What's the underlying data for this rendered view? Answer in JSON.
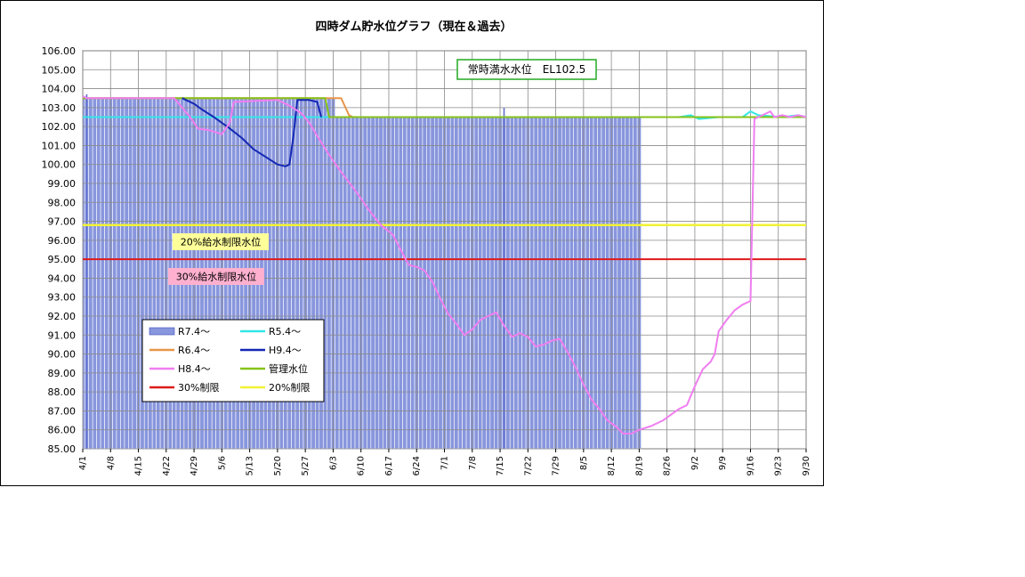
{
  "chart_data": {
    "type": "line",
    "title": "四時ダム貯水位グラフ（現在＆過去）",
    "xlabel": "",
    "ylabel": "",
    "ylim": [
      85,
      106
    ],
    "yticks": [
      "85.00",
      "86.00",
      "87.00",
      "88.00",
      "89.00",
      "90.00",
      "91.00",
      "92.00",
      "93.00",
      "94.00",
      "95.00",
      "96.00",
      "97.00",
      "98.00",
      "99.00",
      "100.00",
      "101.00",
      "102.00",
      "103.00",
      "104.00",
      "105.00",
      "106.00"
    ],
    "xlim": [
      0,
      182
    ],
    "xticks": [
      {
        "day": 0,
        "label": "4/1"
      },
      {
        "day": 7,
        "label": "4/8"
      },
      {
        "day": 14,
        "label": "4/15"
      },
      {
        "day": 21,
        "label": "4/22"
      },
      {
        "day": 28,
        "label": "4/29"
      },
      {
        "day": 35,
        "label": "5/6"
      },
      {
        "day": 42,
        "label": "5/13"
      },
      {
        "day": 49,
        "label": "5/20"
      },
      {
        "day": 56,
        "label": "5/27"
      },
      {
        "day": 63,
        "label": "6/3"
      },
      {
        "day": 70,
        "label": "6/10"
      },
      {
        "day": 77,
        "label": "6/17"
      },
      {
        "day": 84,
        "label": "6/24"
      },
      {
        "day": 91,
        "label": "7/1"
      },
      {
        "day": 98,
        "label": "7/8"
      },
      {
        "day": 105,
        "label": "7/15"
      },
      {
        "day": 112,
        "label": "7/22"
      },
      {
        "day": 119,
        "label": "7/29"
      },
      {
        "day": 126,
        "label": "8/5"
      },
      {
        "day": 133,
        "label": "8/12"
      },
      {
        "day": 140,
        "label": "8/19"
      },
      {
        "day": 147,
        "label": "8/26"
      },
      {
        "day": 154,
        "label": "9/2"
      },
      {
        "day": 161,
        "label": "9/9"
      },
      {
        "day": 168,
        "label": "9/16"
      },
      {
        "day": 175,
        "label": "9/23"
      },
      {
        "day": 182,
        "label": "9/30"
      }
    ],
    "grid": true,
    "legend_position": "lower-left",
    "annotations": [
      {
        "text": "常時満水水位　EL102.5",
        "style": "green-box"
      },
      {
        "text": "20%給水制限水位",
        "style": "yellow-box"
      },
      {
        "text": "30%給水制限水位",
        "style": "pink-box"
      }
    ],
    "series": [
      {
        "name": "R7.4～",
        "kind": "bar",
        "color": "#8896dd",
        "segments": [
          {
            "from": 0,
            "to": 63,
            "value": 103.5
          },
          {
            "from": 64,
            "to": 140,
            "value": 102.5
          }
        ],
        "spikes": [
          {
            "day": 1,
            "value": 103.7
          },
          {
            "day": 106,
            "value": 103.0
          }
        ]
      },
      {
        "name": "R5.4～",
        "kind": "line",
        "color": "#33e6e6",
        "points": [
          [
            0,
            102.5
          ],
          [
            150,
            102.5
          ],
          [
            153,
            102.6
          ],
          [
            155,
            102.4
          ],
          [
            160,
            102.5
          ],
          [
            166,
            102.5
          ],
          [
            168,
            102.8
          ],
          [
            170,
            102.6
          ],
          [
            176,
            102.5
          ],
          [
            180,
            102.6
          ],
          [
            182,
            102.5
          ]
        ]
      },
      {
        "name": "R6.4～",
        "kind": "line",
        "color": "#e8964a",
        "points": [
          [
            0,
            103.5
          ],
          [
            65,
            103.5
          ],
          [
            67,
            102.6
          ],
          [
            68,
            102.5
          ],
          [
            182,
            102.5
          ]
        ]
      },
      {
        "name": "H9.4～",
        "kind": "line",
        "color": "#1428b4",
        "points": [
          [
            25,
            103.5
          ],
          [
            26,
            103.4
          ],
          [
            28,
            103.2
          ],
          [
            30,
            102.9
          ],
          [
            33,
            102.5
          ],
          [
            35,
            102.2
          ],
          [
            37,
            101.9
          ],
          [
            40,
            101.4
          ],
          [
            43,
            100.8
          ],
          [
            46,
            100.4
          ],
          [
            49,
            100.0
          ],
          [
            51,
            99.9
          ],
          [
            52,
            100.0
          ],
          [
            53,
            101.5
          ],
          [
            54,
            103.4
          ],
          [
            57,
            103.4
          ],
          [
            59,
            103.3
          ],
          [
            60,
            102.5
          ]
        ]
      },
      {
        "name": "H8.4～",
        "kind": "line",
        "color": "#f07ef0",
        "points": [
          [
            0,
            103.6
          ],
          [
            1,
            103.5
          ],
          [
            23,
            103.5
          ],
          [
            25,
            103.0
          ],
          [
            27,
            102.5
          ],
          [
            29,
            101.9
          ],
          [
            32,
            101.8
          ],
          [
            35,
            101.6
          ],
          [
            37,
            102.2
          ],
          [
            38,
            103.3
          ],
          [
            49,
            103.4
          ],
          [
            52,
            103.1
          ],
          [
            55,
            102.7
          ],
          [
            57,
            102.2
          ],
          [
            59,
            101.5
          ],
          [
            62,
            100.5
          ],
          [
            65,
            99.6
          ],
          [
            69,
            98.5
          ],
          [
            72,
            97.6
          ],
          [
            75,
            96.8
          ],
          [
            78,
            96.3
          ],
          [
            80,
            95.5
          ],
          [
            82,
            94.7
          ],
          [
            84,
            94.6
          ],
          [
            86,
            94.4
          ],
          [
            88,
            93.8
          ],
          [
            90,
            92.9
          ],
          [
            92,
            92.1
          ],
          [
            94,
            91.6
          ],
          [
            96,
            91.0
          ],
          [
            98,
            91.3
          ],
          [
            100,
            91.8
          ],
          [
            102,
            92.0
          ],
          [
            104,
            92.2
          ],
          [
            106,
            91.5
          ],
          [
            108,
            90.9
          ],
          [
            110,
            91.1
          ],
          [
            112,
            90.9
          ],
          [
            114,
            90.4
          ],
          [
            116,
            90.5
          ],
          [
            118,
            90.7
          ],
          [
            120,
            90.8
          ],
          [
            122,
            90.1
          ],
          [
            124,
            89.3
          ],
          [
            126,
            88.4
          ],
          [
            128,
            87.6
          ],
          [
            130,
            87.1
          ],
          [
            132,
            86.5
          ],
          [
            134,
            86.2
          ],
          [
            136,
            85.8
          ],
          [
            138,
            85.8
          ],
          [
            140,
            86.0
          ],
          [
            143,
            86.2
          ],
          [
            146,
            86.5
          ],
          [
            148,
            86.8
          ],
          [
            150,
            87.1
          ],
          [
            152,
            87.3
          ],
          [
            154,
            88.3
          ],
          [
            156,
            89.2
          ],
          [
            158,
            89.6
          ],
          [
            159,
            90.0
          ],
          [
            160,
            91.2
          ],
          [
            162,
            91.8
          ],
          [
            164,
            92.3
          ],
          [
            166,
            92.6
          ],
          [
            168,
            92.8
          ],
          [
            169,
            102.4
          ],
          [
            171,
            102.6
          ],
          [
            173,
            102.8
          ],
          [
            174,
            102.5
          ],
          [
            176,
            102.6
          ],
          [
            178,
            102.5
          ],
          [
            180,
            102.6
          ],
          [
            182,
            102.5
          ]
        ]
      },
      {
        "name": "管理水位",
        "kind": "line",
        "color": "#86c21a",
        "points": [
          [
            0,
            103.5
          ],
          [
            61,
            103.5
          ],
          [
            62,
            102.5
          ],
          [
            182,
            102.5
          ]
        ]
      },
      {
        "name": "30%制限",
        "kind": "line",
        "color": "#dd1a1a",
        "points": [
          [
            0,
            95.0
          ],
          [
            182,
            95.0
          ]
        ]
      },
      {
        "name": "20%制限",
        "kind": "line",
        "color": "#f2f233",
        "points": [
          [
            0,
            96.8
          ],
          [
            182,
            96.8
          ]
        ]
      }
    ]
  }
}
